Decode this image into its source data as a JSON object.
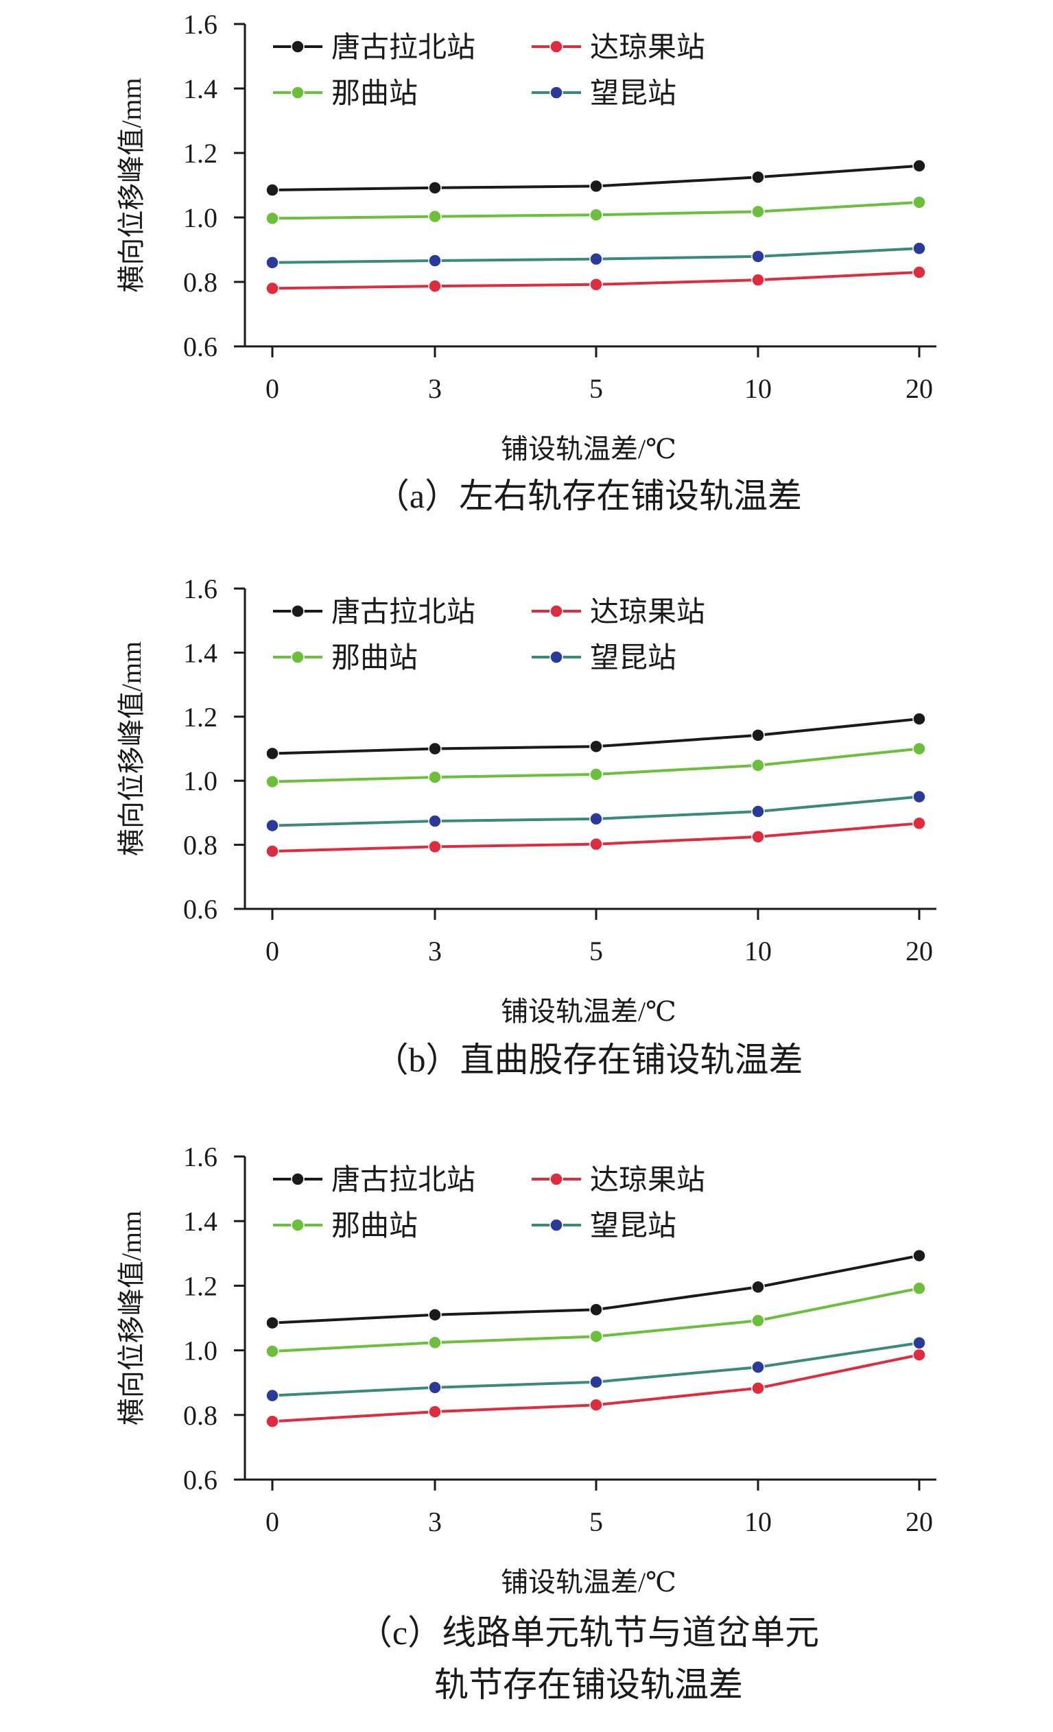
{
  "legend_order": [
    0,
    2,
    1,
    3
  ],
  "chart_data": [
    {
      "type": "line",
      "caption": "（a）左右轨存在铺设轨温差",
      "xlabel": "铺设轨温差/℃",
      "ylabel": "横向位移峰值/mm",
      "categories": [
        "0",
        "3",
        "5",
        "10",
        "20"
      ],
      "ylim": [
        0.6,
        1.6
      ],
      "yticks": [
        "0.6",
        "0.8",
        "1.0",
        "1.2",
        "1.4",
        "1.6"
      ],
      "legend_position": "top-left",
      "series": [
        {
          "name": "唐古拉北站",
          "color": "#1a1a1a",
          "values": [
            1.085,
            1.092,
            1.097,
            1.125,
            1.16
          ]
        },
        {
          "name": "那曲站",
          "color": "#6bbf3a",
          "values": [
            0.997,
            1.003,
            1.008,
            1.018,
            1.047
          ]
        },
        {
          "name": "达琼果站",
          "color": "#e02b3c",
          "values": [
            0.78,
            0.787,
            0.792,
            0.806,
            0.83
          ]
        },
        {
          "name": "望昆站",
          "color": "#3a8a7a",
          "marker": "#2a3a9a",
          "values": [
            0.86,
            0.866,
            0.871,
            0.879,
            0.904
          ]
        }
      ]
    },
    {
      "type": "line",
      "caption": "（b）直曲股存在铺设轨温差",
      "xlabel": "铺设轨温差/℃",
      "ylabel": "横向位移峰值/mm",
      "categories": [
        "0",
        "3",
        "5",
        "10",
        "20"
      ],
      "ylim": [
        0.6,
        1.6
      ],
      "yticks": [
        "0.6",
        "0.8",
        "1.0",
        "1.2",
        "1.4",
        "1.6"
      ],
      "legend_position": "top-left",
      "series": [
        {
          "name": "唐古拉北站",
          "color": "#1a1a1a",
          "values": [
            1.085,
            1.1,
            1.107,
            1.142,
            1.193
          ]
        },
        {
          "name": "那曲站",
          "color": "#6bbf3a",
          "values": [
            0.997,
            1.011,
            1.02,
            1.048,
            1.1
          ]
        },
        {
          "name": "达琼果站",
          "color": "#e02b3c",
          "values": [
            0.78,
            0.794,
            0.802,
            0.825,
            0.867
          ]
        },
        {
          "name": "望昆站",
          "color": "#3a8a7a",
          "marker": "#2a3a9a",
          "values": [
            0.86,
            0.874,
            0.881,
            0.904,
            0.95
          ]
        }
      ]
    },
    {
      "type": "line",
      "caption": [
        "（c）线路单元轨节与道岔单元",
        "轨节存在铺设轨温差"
      ],
      "xlabel": "铺设轨温差/℃",
      "ylabel": "横向位移峰值/mm",
      "categories": [
        "0",
        "3",
        "5",
        "10",
        "20"
      ],
      "ylim": [
        0.6,
        1.6
      ],
      "yticks": [
        "0.6",
        "0.8",
        "1.0",
        "1.2",
        "1.4",
        "1.6"
      ],
      "legend_position": "top-left",
      "series": [
        {
          "name": "唐古拉北站",
          "color": "#1a1a1a",
          "values": [
            1.085,
            1.11,
            1.126,
            1.196,
            1.293
          ]
        },
        {
          "name": "那曲站",
          "color": "#6bbf3a",
          "values": [
            0.997,
            1.024,
            1.043,
            1.092,
            1.192
          ]
        },
        {
          "name": "达琼果站",
          "color": "#e02b3c",
          "values": [
            0.78,
            0.81,
            0.831,
            0.883,
            0.986
          ]
        },
        {
          "name": "望昆站",
          "color": "#3a8a7a",
          "marker": "#2a3a9a",
          "values": [
            0.86,
            0.885,
            0.902,
            0.948,
            1.023
          ]
        }
      ]
    }
  ]
}
